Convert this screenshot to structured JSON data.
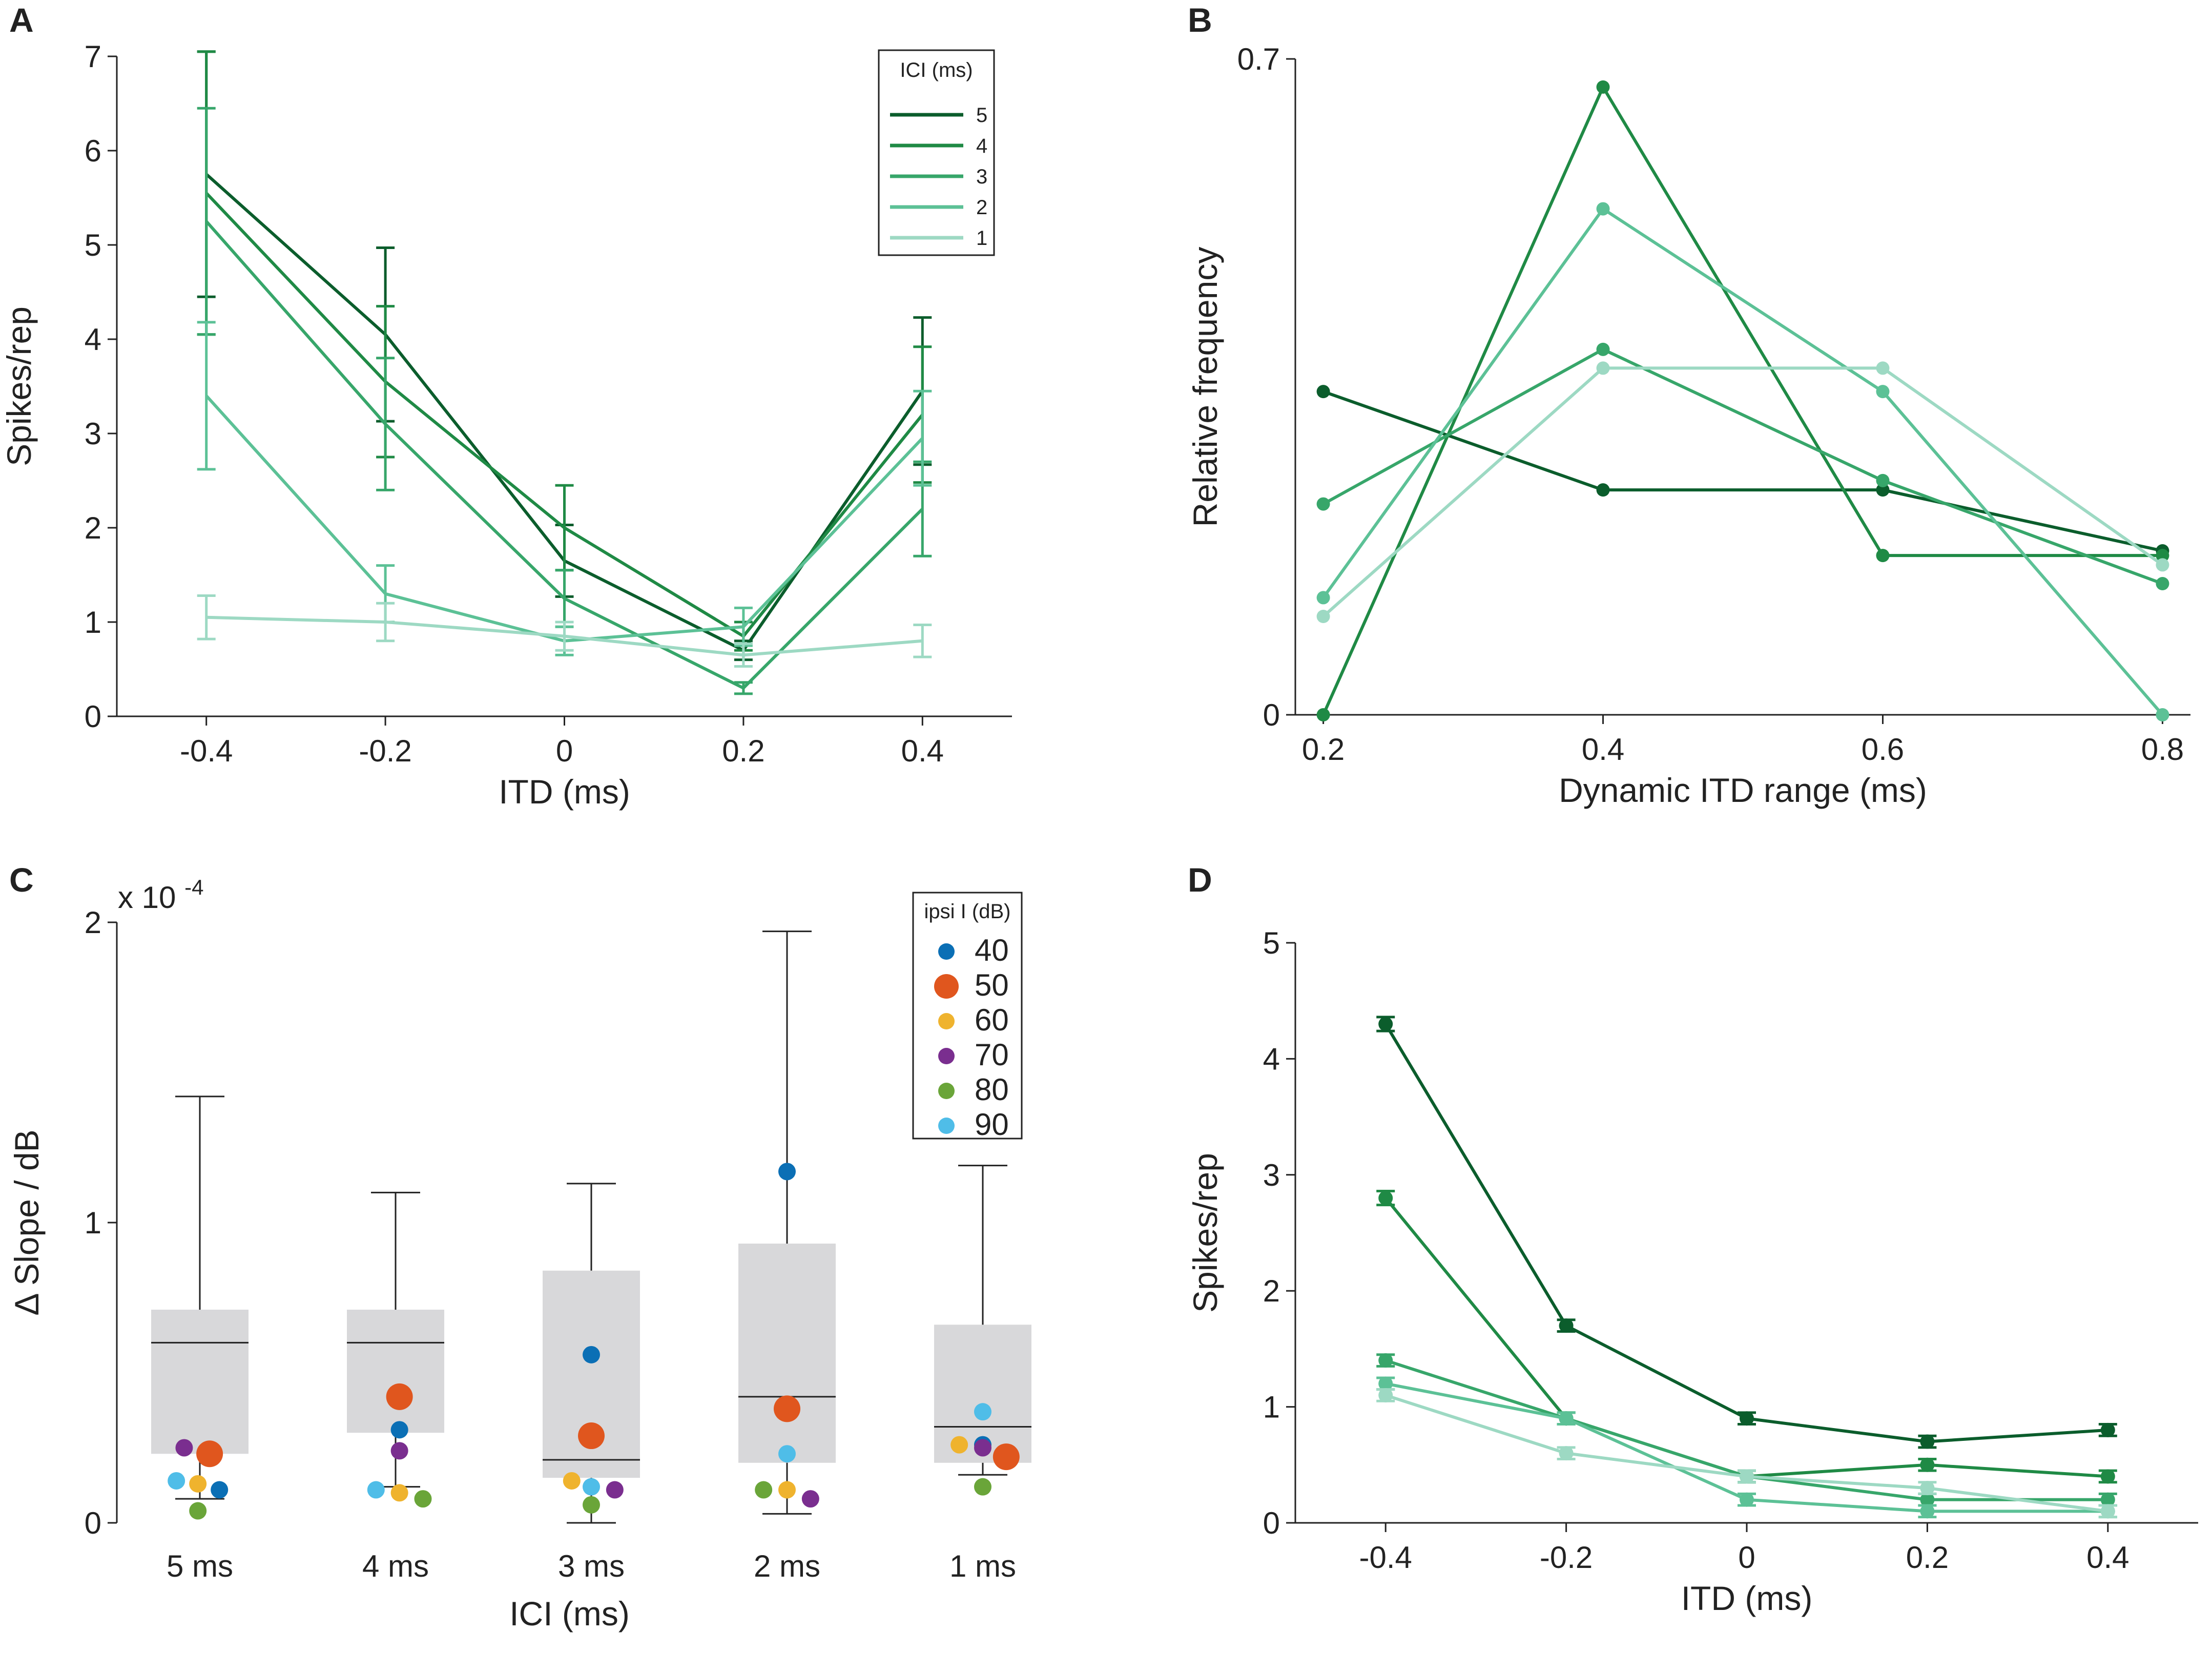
{
  "colors": {
    "ici": [
      "#0b5d2c",
      "#1f8a45",
      "#37a66a",
      "#5cc196",
      "#9dd9c3"
    ],
    "ipsi": [
      "#0b6fb5",
      "#e0561e",
      "#efb32e",
      "#7a2e8f",
      "#6aa539",
      "#4fbde8"
    ],
    "box": "#d8d8da",
    "axis": "#222222"
  },
  "chart_data": [
    {
      "panel": "A",
      "type": "line",
      "xlabel": "ITD (ms)",
      "ylabel": "Spikes/rep",
      "xlim": [
        -0.5,
        0.5
      ],
      "ylim": [
        0,
        7
      ],
      "xticks": [
        "-0.4",
        "-0.2",
        "0",
        "0.2",
        "0.4"
      ],
      "yticks": [
        "0",
        "1",
        "2",
        "3",
        "4",
        "5",
        "6",
        "7"
      ],
      "x": [
        -0.4,
        -0.2,
        0,
        0.2,
        0.4
      ],
      "legend_title": "ICI (ms)",
      "legend_position": "top-right",
      "series": [
        {
          "name": "5",
          "values": [
            5.75,
            4.05,
            1.65,
            0.7,
            3.45
          ],
          "err": [
            1.3,
            0.92,
            0.38,
            0.1,
            0.78
          ]
        },
        {
          "name": "4",
          "values": [
            5.55,
            3.55,
            2.0,
            0.85,
            3.2
          ],
          "err": [
            1.5,
            0.8,
            0.45,
            0.15,
            0.72
          ]
        },
        {
          "name": "3",
          "values": [
            5.25,
            3.1,
            1.25,
            0.3,
            2.2
          ],
          "err": [
            1.2,
            0.7,
            0.3,
            0.06,
            0.5
          ]
        },
        {
          "name": "2",
          "values": [
            3.4,
            1.3,
            0.8,
            0.95,
            2.95
          ],
          "err": [
            0.78,
            0.3,
            0.15,
            0.2,
            0.5
          ]
        },
        {
          "name": "1",
          "values": [
            1.05,
            1.0,
            0.85,
            0.65,
            0.8
          ],
          "err": [
            0.23,
            0.2,
            0.15,
            0.12,
            0.17
          ]
        }
      ]
    },
    {
      "panel": "B",
      "type": "line",
      "xlabel": "Dynamic ITD range (ms)",
      "ylabel": "Relative frequency",
      "xlim": [
        0.18,
        0.82
      ],
      "ylim": [
        0,
        0.7
      ],
      "xticks": [
        "0.2",
        "0.4",
        "0.6",
        "0.8"
      ],
      "yticks": [
        "0",
        "0.7"
      ],
      "x": [
        0.2,
        0.4,
        0.6,
        0.8
      ],
      "series": [
        {
          "name": "5",
          "values": [
            0.345,
            0.24,
            0.24,
            0.175
          ]
        },
        {
          "name": "4",
          "values": [
            0.0,
            0.67,
            0.17,
            0.17
          ]
        },
        {
          "name": "3",
          "values": [
            0.225,
            0.39,
            0.25,
            0.14
          ]
        },
        {
          "name": "2",
          "values": [
            0.125,
            0.54,
            0.345,
            0.0
          ]
        },
        {
          "name": "1",
          "values": [
            0.105,
            0.37,
            0.37,
            0.16
          ]
        }
      ]
    },
    {
      "panel": "C",
      "type": "box",
      "xlabel": "ICI (ms)",
      "ylabel": "Δ Slope  / dB",
      "scale_label": "x 10",
      "scale_exp": "-4",
      "ylim": [
        0,
        2
      ],
      "yticks": [
        "0",
        "1",
        "2"
      ],
      "categories": [
        "5 ms",
        "4 ms",
        "3 ms",
        "2 ms",
        "1 ms"
      ],
      "boxes": [
        {
          "whisker_low": 0.08,
          "q1": 0.23,
          "median": 0.6,
          "q3": 0.71,
          "whisker_high": 1.42
        },
        {
          "whisker_low": 0.12,
          "q1": 0.3,
          "median": 0.6,
          "q3": 0.71,
          "whisker_high": 1.1
        },
        {
          "whisker_low": 0.0,
          "q1": 0.15,
          "median": 0.21,
          "q3": 0.84,
          "whisker_high": 1.13
        },
        {
          "whisker_low": 0.03,
          "q1": 0.2,
          "median": 0.42,
          "q3": 0.93,
          "whisker_high": 1.97
        },
        {
          "whisker_low": 0.16,
          "q1": 0.2,
          "median": 0.32,
          "q3": 0.66,
          "whisker_high": 1.19
        }
      ],
      "legend_title": "ipsi I (dB)",
      "legend_position": "top-right",
      "legend_items": [
        "40",
        "50",
        "60",
        "70",
        "80",
        "90"
      ],
      "points": [
        [
          {
            "level": "40",
            "value": 0.11,
            "dx": 0.1
          },
          {
            "level": "50",
            "value": 0.23,
            "dx": 0.05
          },
          {
            "level": "60",
            "value": 0.13,
            "dx": -0.01
          },
          {
            "level": "70",
            "value": 0.25,
            "dx": -0.08
          },
          {
            "level": "80",
            "value": 0.04,
            "dx": -0.01
          },
          {
            "level": "90",
            "value": 0.14,
            "dx": -0.12
          }
        ],
        [
          {
            "level": "40",
            "value": 0.31,
            "dx": 0.02
          },
          {
            "level": "50",
            "value": 0.42,
            "dx": 0.02
          },
          {
            "level": "60",
            "value": 0.1,
            "dx": 0.02
          },
          {
            "level": "70",
            "value": 0.24,
            "dx": 0.02
          },
          {
            "level": "80",
            "value": 0.08,
            "dx": 0.14
          },
          {
            "level": "90",
            "value": 0.11,
            "dx": -0.1
          }
        ],
        [
          {
            "level": "40",
            "value": 0.56,
            "dx": 0.0
          },
          {
            "level": "50",
            "value": 0.29,
            "dx": 0.0
          },
          {
            "level": "60",
            "value": 0.14,
            "dx": -0.1
          },
          {
            "level": "70",
            "value": 0.11,
            "dx": 0.12
          },
          {
            "level": "80",
            "value": 0.06,
            "dx": 0.0
          },
          {
            "level": "90",
            "value": 0.12,
            "dx": 0.0
          }
        ],
        [
          {
            "level": "40",
            "value": 1.17,
            "dx": 0.0
          },
          {
            "level": "50",
            "value": 0.38,
            "dx": 0.0
          },
          {
            "level": "60",
            "value": 0.11,
            "dx": 0.0
          },
          {
            "level": "70",
            "value": 0.08,
            "dx": 0.12
          },
          {
            "level": "80",
            "value": 0.11,
            "dx": -0.12
          },
          {
            "level": "90",
            "value": 0.23,
            "dx": 0.0
          }
        ],
        [
          {
            "level": "40",
            "value": 0.26,
            "dx": 0.0
          },
          {
            "level": "50",
            "value": 0.22,
            "dx": 0.12
          },
          {
            "level": "60",
            "value": 0.26,
            "dx": -0.12
          },
          {
            "level": "70",
            "value": 0.25,
            "dx": 0.0
          },
          {
            "level": "80",
            "value": 0.12,
            "dx": 0.0
          },
          {
            "level": "90",
            "value": 0.37,
            "dx": 0.0
          }
        ]
      ]
    },
    {
      "panel": "D",
      "type": "line",
      "xlabel": "ITD (ms)",
      "ylabel": "Spikes/rep",
      "xlim": [
        -0.5,
        0.5
      ],
      "ylim": [
        0,
        5
      ],
      "xticks": [
        "-0.4",
        "-0.2",
        "0",
        "0.2",
        "0.4"
      ],
      "yticks": [
        "0",
        "1",
        "2",
        "3",
        "4",
        "5"
      ],
      "x": [
        -0.4,
        -0.2,
        0,
        0.2,
        0.4
      ],
      "series": [
        {
          "name": "5",
          "values": [
            4.3,
            1.7,
            0.9,
            0.7,
            0.8
          ],
          "err": [
            0.06,
            0.05,
            0.05,
            0.05,
            0.05
          ]
        },
        {
          "name": "4",
          "values": [
            2.8,
            0.9,
            0.4,
            0.5,
            0.4
          ],
          "err": [
            0.06,
            0.05,
            0.05,
            0.05,
            0.05
          ]
        },
        {
          "name": "3",
          "values": [
            1.4,
            0.9,
            0.4,
            0.2,
            0.2
          ],
          "err": [
            0.05,
            0.05,
            0.05,
            0.05,
            0.05
          ]
        },
        {
          "name": "2",
          "values": [
            1.2,
            0.9,
            0.2,
            0.1,
            0.1
          ],
          "err": [
            0.05,
            0.05,
            0.05,
            0.05,
            0.05
          ]
        },
        {
          "name": "1",
          "values": [
            1.1,
            0.6,
            0.4,
            0.3,
            0.1
          ],
          "err": [
            0.05,
            0.05,
            0.05,
            0.05,
            0.05
          ]
        }
      ]
    }
  ]
}
